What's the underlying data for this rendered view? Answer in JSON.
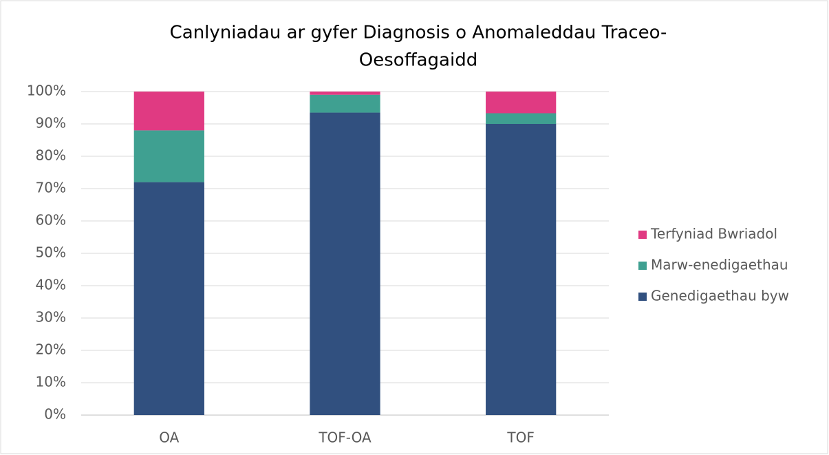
{
  "chart_data": {
    "type": "stacked_bar",
    "title": [
      "Canlyniadau ar gyfer Diagnosis o Anomaleddau Traceo-",
      "Oesoffagaidd"
    ],
    "categories": [
      "OA",
      "TOF-OA",
      "TOF"
    ],
    "series": [
      {
        "name": "Genedigaethau byw",
        "color": "#31507f",
        "values": [
          72,
          93.5,
          90
        ]
      },
      {
        "name": "Marw-enedigaethau",
        "color": "#3fa091",
        "values": [
          16,
          5.5,
          3.3
        ]
      },
      {
        "name": "Terfyniad Bwriadol",
        "color": "#e03a82",
        "values": [
          12,
          1,
          6.7
        ]
      }
    ],
    "ylim": [
      0,
      100
    ],
    "yticks": [
      {
        "value": 0,
        "label": "0%"
      },
      {
        "value": 10,
        "label": "10%"
      },
      {
        "value": 20,
        "label": "20%"
      },
      {
        "value": 30,
        "label": "30%"
      },
      {
        "value": 40,
        "label": "40%"
      },
      {
        "value": 50,
        "label": "50%"
      },
      {
        "value": 60,
        "label": "60%"
      },
      {
        "value": 70,
        "label": "70%"
      },
      {
        "value": 80,
        "label": "80%"
      },
      {
        "value": 90,
        "label": "90%"
      },
      {
        "value": 100,
        "label": "100%"
      }
    ],
    "grid": true,
    "legend": "right"
  }
}
